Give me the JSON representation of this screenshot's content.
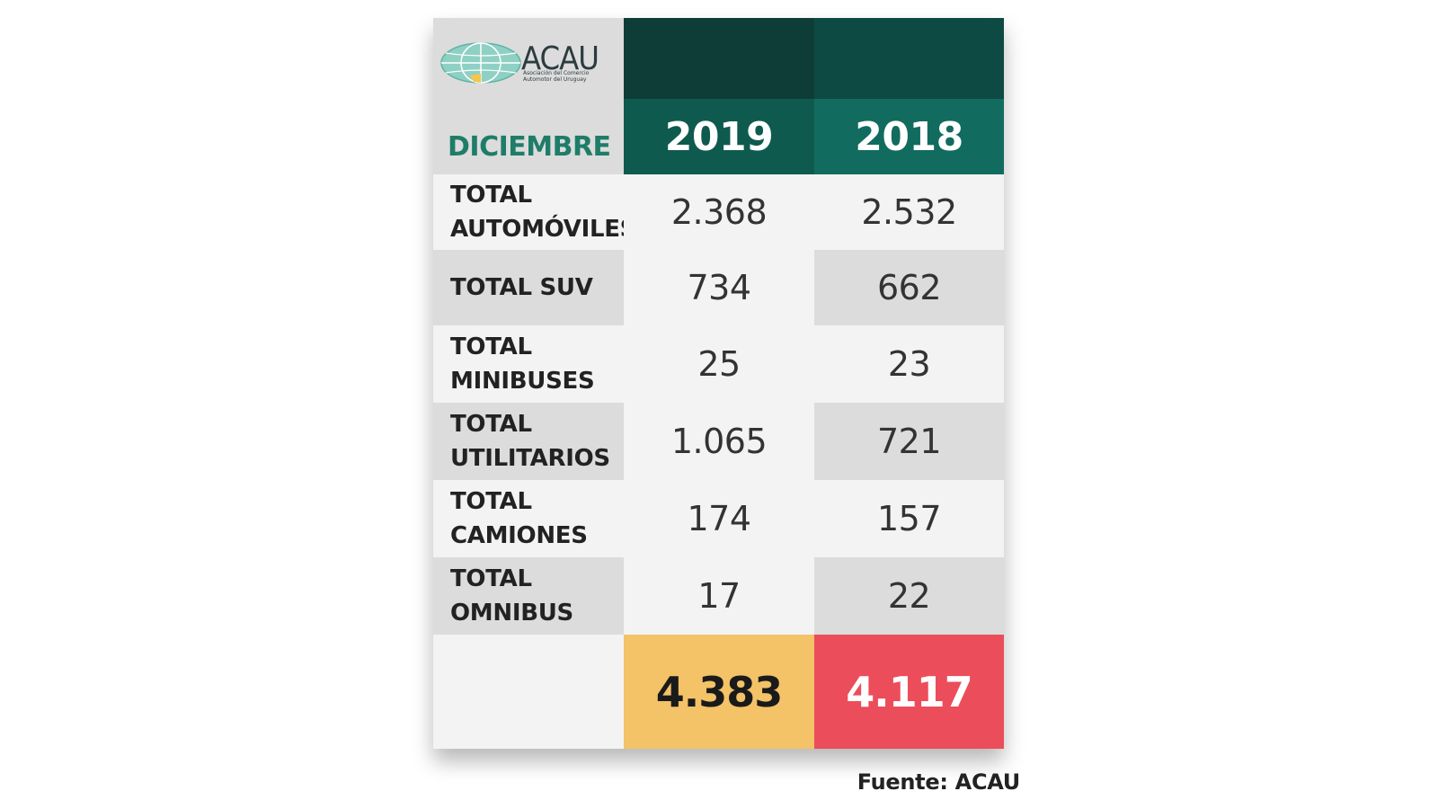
{
  "logo": {
    "name": "ACAU",
    "subtitle": "Asociación del Comercio Automotor del Uruguay"
  },
  "colors": {
    "header_dark_2019": "#0e3d37",
    "header_dark_2018": "#0d4a43",
    "header_year_2019": "#0f5a4f",
    "header_year_2018": "#126b5f",
    "month_text": "#1e7d69",
    "row_light": "#f3f3f3",
    "row_dark": "#dcdcdc",
    "total_2019": "#f4c267",
    "total_2018": "#ec4d5a"
  },
  "chart_data": {
    "type": "table",
    "corner_label": "DICIEMBRE",
    "columns": [
      "2019",
      "2018"
    ],
    "rows": [
      {
        "label_lines": [
          "TOTAL",
          "AUTOMÓVILES"
        ],
        "values": [
          "2.368",
          "2.532"
        ]
      },
      {
        "label_lines": [
          "TOTAL SUV"
        ],
        "values": [
          "734",
          "662"
        ]
      },
      {
        "label_lines": [
          "TOTAL",
          "MINIBUSES"
        ],
        "values": [
          "25",
          "23"
        ]
      },
      {
        "label_lines": [
          "TOTAL",
          "UTILITARIOS"
        ],
        "values": [
          "1.065",
          "721"
        ]
      },
      {
        "label_lines": [
          "TOTAL",
          "CAMIONES"
        ],
        "values": [
          "174",
          "157"
        ]
      },
      {
        "label_lines": [
          "TOTAL",
          "OMNIBUS"
        ],
        "values": [
          "17",
          "22"
        ]
      }
    ],
    "totals": [
      "4.383",
      "4.117"
    ]
  },
  "source": "Fuente: ACAU"
}
